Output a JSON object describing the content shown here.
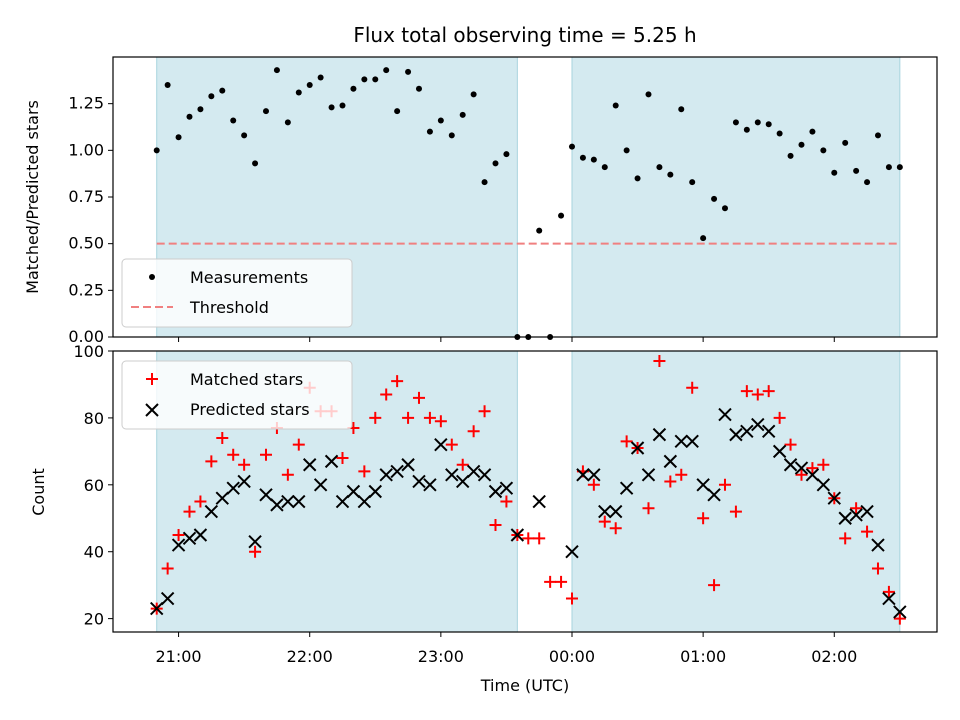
{
  "chart_data": [
    {
      "type": "scatter",
      "title": "Flux total observing time = 5.25 h",
      "ylabel": "Matched/Predicted stars",
      "xlabel": "",
      "ylim": [
        0,
        1.5
      ],
      "yticks": [
        "0.00",
        "0.25",
        "0.50",
        "0.75",
        "1.00",
        "1.25"
      ],
      "ytick_values": [
        0,
        0.25,
        0.5,
        0.75,
        1.0,
        1.25
      ],
      "shaded_intervals": [
        [
          "20:50",
          "23:35"
        ],
        [
          "00:00",
          "02:30"
        ]
      ],
      "legend": {
        "placement": "lower-left",
        "entries": [
          "Measurements",
          "Threshold"
        ]
      },
      "threshold": {
        "name": "Threshold",
        "value": 0.5,
        "color": "#f08080",
        "style": "dashed"
      },
      "series": [
        {
          "name": "Measurements",
          "color": "#000000",
          "marker": "dot",
          "x": [
            "20:50",
            "20:55",
            "21:00",
            "21:05",
            "21:10",
            "21:15",
            "21:20",
            "21:25",
            "21:30",
            "21:35",
            "21:40",
            "21:45",
            "21:50",
            "21:55",
            "22:00",
            "22:05",
            "22:10",
            "22:15",
            "22:20",
            "22:25",
            "22:30",
            "22:35",
            "22:40",
            "22:45",
            "22:50",
            "22:55",
            "23:00",
            "23:05",
            "23:10",
            "23:15",
            "23:20",
            "23:25",
            "23:30",
            "23:35",
            "23:40",
            "23:45",
            "23:50",
            "23:55",
            "00:00",
            "00:05",
            "00:10",
            "00:15",
            "00:20",
            "00:25",
            "00:30",
            "00:35",
            "00:40",
            "00:45",
            "00:50",
            "00:55",
            "01:00",
            "01:05",
            "01:10",
            "01:15",
            "01:20",
            "01:25",
            "01:30",
            "01:35",
            "01:40",
            "01:45",
            "01:50",
            "01:55",
            "02:00",
            "02:05",
            "02:10",
            "02:15",
            "02:20",
            "02:25",
            "02:30"
          ],
          "y": [
            1.0,
            1.35,
            1.07,
            1.18,
            1.22,
            1.29,
            1.32,
            1.16,
            1.08,
            0.93,
            1.21,
            1.43,
            1.15,
            1.31,
            1.35,
            1.39,
            1.23,
            1.24,
            1.33,
            1.38,
            1.38,
            1.43,
            1.21,
            1.42,
            1.33,
            1.1,
            1.16,
            1.08,
            1.19,
            1.3,
            0.83,
            0.93,
            0.98,
            0.0,
            0.0,
            0.57,
            0.0,
            0.65,
            1.02,
            0.96,
            0.95,
            0.91,
            1.24,
            1.0,
            0.85,
            1.3,
            0.91,
            0.87,
            1.22,
            0.83,
            0.53,
            0.74,
            0.69,
            1.15,
            1.11,
            1.15,
            1.14,
            1.09,
            0.97,
            1.03,
            1.1,
            1.0,
            0.88,
            1.04,
            0.89,
            0.83,
            1.08,
            0.91,
            0.91
          ]
        }
      ]
    },
    {
      "type": "scatter",
      "title": "",
      "xlabel": "Time (UTC)",
      "ylabel": "Count",
      "ylim": [
        16,
        100
      ],
      "xlim": [
        "20:30",
        "02:47"
      ],
      "xticks": [
        "21:00",
        "22:00",
        "23:00",
        "00:00",
        "01:00",
        "02:00"
      ],
      "yticks": [
        "20",
        "40",
        "60",
        "80",
        "100"
      ],
      "ytick_values": [
        20,
        40,
        60,
        80,
        100
      ],
      "shaded_intervals": [
        [
          "20:50",
          "23:35"
        ],
        [
          "00:00",
          "02:30"
        ]
      ],
      "shade_color": "#d4eaf0",
      "legend": {
        "placement": "top-left",
        "entries": [
          "Matched stars",
          "Predicted stars"
        ]
      },
      "series": [
        {
          "name": "Matched stars",
          "color": "#ff0000",
          "marker": "plus",
          "x": [
            "20:50",
            "20:55",
            "21:00",
            "21:05",
            "21:10",
            "21:15",
            "21:20",
            "21:25",
            "21:30",
            "21:35",
            "21:40",
            "21:45",
            "21:50",
            "21:55",
            "22:00",
            "22:05",
            "22:10",
            "22:15",
            "22:20",
            "22:25",
            "22:30",
            "22:35",
            "22:40",
            "22:45",
            "22:50",
            "22:55",
            "23:00",
            "23:05",
            "23:10",
            "23:15",
            "23:20",
            "23:25",
            "23:30",
            "23:35",
            "23:40",
            "23:45",
            "23:50",
            "23:55",
            "00:00",
            "00:05",
            "00:10",
            "00:15",
            "00:20",
            "00:25",
            "00:30",
            "00:35",
            "00:40",
            "00:45",
            "00:50",
            "00:55",
            "01:00",
            "01:05",
            "01:10",
            "01:15",
            "01:20",
            "01:25",
            "01:30",
            "01:35",
            "01:40",
            "01:45",
            "01:50",
            "01:55",
            "02:00",
            "02:05",
            "02:10",
            "02:15",
            "02:20",
            "02:25",
            "02:30"
          ],
          "y": [
            23,
            35,
            45,
            52,
            55,
            67,
            74,
            69,
            66,
            40,
            69,
            77,
            63,
            72,
            89,
            82,
            82,
            68,
            77,
            64,
            80,
            87,
            91,
            80,
            86,
            80,
            79,
            72,
            66,
            76,
            82,
            48,
            55,
            45,
            44,
            44,
            31,
            31,
            26,
            64,
            60,
            49,
            47,
            73,
            71,
            53,
            97,
            61,
            63,
            89,
            50,
            30,
            60,
            52,
            88,
            87,
            88,
            80,
            72,
            63,
            65,
            66,
            56,
            44,
            53,
            46,
            35,
            28,
            20
          ]
        },
        {
          "name": "Predicted stars",
          "color": "#000000",
          "marker": "x",
          "x": [
            "20:50",
            "20:55",
            "21:00",
            "21:05",
            "21:10",
            "21:15",
            "21:20",
            "21:25",
            "21:30",
            "21:35",
            "21:40",
            "21:45",
            "21:50",
            "21:55",
            "22:00",
            "22:05",
            "22:10",
            "22:15",
            "22:20",
            "22:25",
            "22:30",
            "22:35",
            "22:40",
            "22:45",
            "22:50",
            "22:55",
            "23:00",
            "23:05",
            "23:10",
            "23:15",
            "23:20",
            "23:25",
            "23:30",
            "23:35",
            "23:45",
            "00:00",
            "00:05",
            "00:10",
            "00:15",
            "00:20",
            "00:25",
            "00:30",
            "00:35",
            "00:40",
            "00:45",
            "00:50",
            "00:55",
            "01:00",
            "01:05",
            "01:10",
            "01:15",
            "01:20",
            "01:25",
            "01:30",
            "01:35",
            "01:40",
            "01:45",
            "01:50",
            "01:55",
            "02:00",
            "02:05",
            "02:10",
            "02:15",
            "02:20",
            "02:25",
            "02:30"
          ],
          "y": [
            23,
            26,
            42,
            44,
            45,
            52,
            56,
            59,
            61,
            43,
            57,
            54,
            55,
            55,
            66,
            60,
            67,
            55,
            58,
            55,
            58,
            63,
            64,
            66,
            61,
            60,
            72,
            63,
            61,
            64,
            63,
            58,
            59,
            45,
            55,
            40,
            63,
            63,
            52,
            52,
            59,
            71,
            63,
            75,
            67,
            73,
            73,
            60,
            57,
            81,
            75,
            76,
            78,
            76,
            70,
            66,
            65,
            63,
            60,
            56,
            50,
            51,
            52,
            42,
            26,
            22
          ]
        }
      ]
    }
  ]
}
